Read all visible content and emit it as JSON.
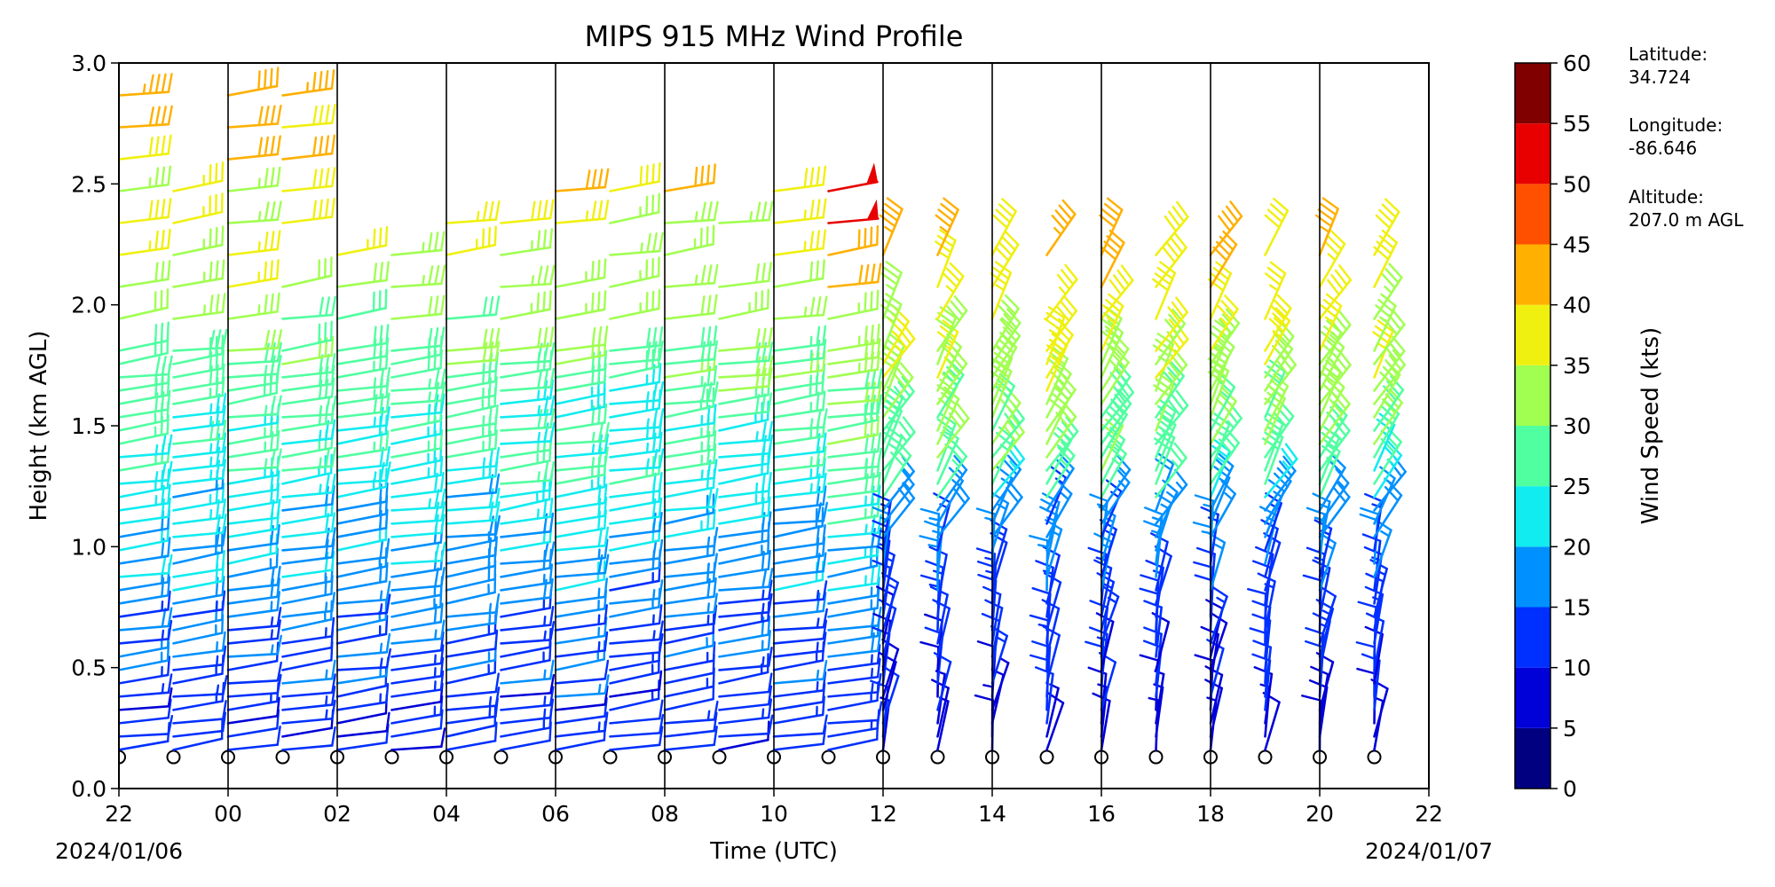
{
  "chart_data": {
    "type": "wind_barb_profile",
    "title": "MIPS 915 MHz Wind Profile",
    "xlabel": "Time (UTC)",
    "ylabel": "Height (km AGL)",
    "x_ticks": [
      "22",
      "00",
      "02",
      "04",
      "06",
      "08",
      "10",
      "12",
      "14",
      "16",
      "18",
      "20",
      "22"
    ],
    "x_date_left": "2024/01/06",
    "x_date_right": "2024/01/07",
    "y_ticks": [
      "0.0",
      "0.5",
      "1.0",
      "1.5",
      "2.0",
      "2.5",
      "3.0"
    ],
    "ylim": [
      0,
      3
    ],
    "x_range_hours_utc": [
      "2024-01-06 22:00",
      "2024-01-07 22:00"
    ],
    "vertical_lines_every_hours": 2,
    "profile_times_utc": [
      "22:00",
      "23:00",
      "00:00",
      "01:00",
      "02:00",
      "03:00",
      "04:00",
      "05:00",
      "06:00",
      "07:00",
      "08:00",
      "09:00",
      "10:00",
      "11:00",
      "12:00",
      "13:00",
      "14:00",
      "15:00",
      "16:00",
      "17:00",
      "18:00",
      "19:00",
      "20:00",
      "21:00"
    ],
    "lowest_gate_km": 0.13,
    "gate_spacing_km": 0.055,
    "colorbar": {
      "label": "Wind Speed (kts)",
      "ticks": [
        "0",
        "5",
        "10",
        "15",
        "20",
        "25",
        "30",
        "35",
        "40",
        "45",
        "50",
        "55",
        "60"
      ],
      "bins": [
        {
          "from": 0,
          "to": 5,
          "color": "#000080"
        },
        {
          "from": 5,
          "to": 10,
          "color": "#0000d8"
        },
        {
          "from": 10,
          "to": 15,
          "color": "#0030ff"
        },
        {
          "from": 15,
          "to": 20,
          "color": "#0090ff"
        },
        {
          "from": 20,
          "to": 25,
          "color": "#10ecf0"
        },
        {
          "from": 25,
          "to": 30,
          "color": "#50ffa0"
        },
        {
          "from": 30,
          "to": 35,
          "color": "#a0ff50"
        },
        {
          "from": 35,
          "to": 40,
          "color": "#f0f010"
        },
        {
          "from": 40,
          "to": 45,
          "color": "#ffb000"
        },
        {
          "from": 45,
          "to": 50,
          "color": "#ff5000"
        },
        {
          "from": 50,
          "to": 55,
          "color": "#e80000"
        },
        {
          "from": 55,
          "to": 60,
          "color": "#800000"
        }
      ]
    },
    "wind_speed_profile_summary_kts": [
      {
        "height_km": 0.13,
        "speed": 10
      },
      {
        "height_km": 0.5,
        "speed": 18
      },
      {
        "height_km": 1.0,
        "speed": 22
      },
      {
        "height_km": 1.5,
        "speed": 26
      },
      {
        "height_km": 2.0,
        "speed": 33
      },
      {
        "height_km": 2.5,
        "speed": 41
      },
      {
        "height_km": 2.8,
        "speed": 46
      }
    ]
  },
  "station": {
    "latitude_label": "Latitude:",
    "latitude_value": "34.724",
    "longitude_label": "Longitude:",
    "longitude_value": "-86.646",
    "altitude_label": "Altitude:",
    "altitude_value": "207.0 m AGL"
  }
}
